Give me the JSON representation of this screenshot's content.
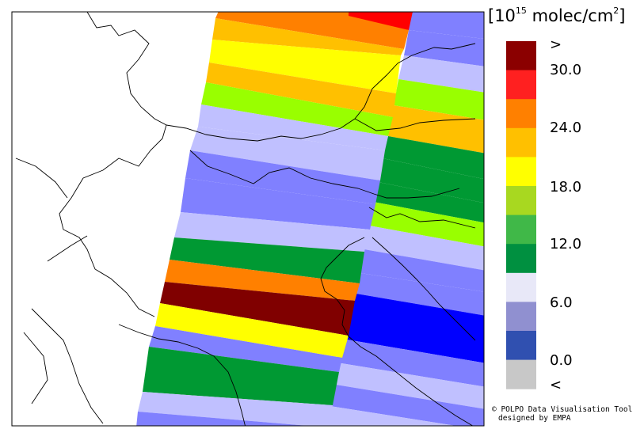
{
  "legend": {
    "unit_prefix": "[10",
    "unit_exponent": "15",
    "unit_suffix": " molec/cm",
    "unit_squared": "2",
    "unit_close": "]",
    "labels": [
      ">",
      "30.0",
      "24.0",
      "18.0",
      "12.0",
      "6.0",
      "0.0",
      "<"
    ],
    "colors": [
      "#8b0000",
      "#ff2020",
      "#ff8000",
      "#ffc000",
      "#ffff00",
      "#a8d820",
      "#40b848",
      "#009040",
      "#e8e8f8",
      "#9090d0",
      "#3050b0",
      "#c8c8c8"
    ]
  },
  "credit": {
    "line1": "© POLPO Data Visualisation Tool",
    "line2": "designed by EMPA"
  },
  "pixel_colors": {
    "dark_red": "#800000",
    "red": "#ff0000",
    "orange": "#ff8000",
    "amber": "#ffc000",
    "yellow": "#ffff00",
    "lime": "#99ff00",
    "green": "#009933",
    "light_blue": "#c0c0ff",
    "medium_blue": "#8080ff",
    "blue": "#0000ff"
  }
}
